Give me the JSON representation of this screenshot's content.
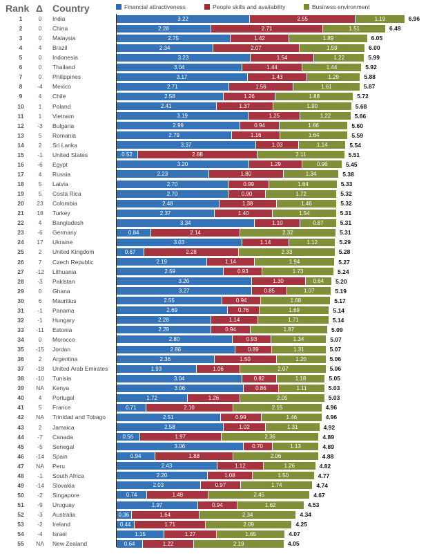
{
  "headers": {
    "rank": "Rank",
    "delta": "Δ",
    "country": "Country"
  },
  "chart_data": {
    "type": "bar",
    "orientation": "horizontal",
    "stacked": true,
    "series": [
      {
        "name": "Financial attractiveness",
        "color": "#2b6cb5"
      },
      {
        "name": "People skills and availability",
        "color": "#a12a36"
      },
      {
        "name": "Business environment",
        "color": "#7b8a2f"
      }
    ],
    "xlim": [
      0,
      7
    ],
    "rows": [
      {
        "rank": "1",
        "delta": "0",
        "country": "India",
        "values": [
          3.22,
          2.55,
          1.19
        ],
        "total": "6.96"
      },
      {
        "rank": "2",
        "delta": "0",
        "country": "China",
        "values": [
          2.28,
          2.71,
          1.51
        ],
        "total": "6.49"
      },
      {
        "rank": "3",
        "delta": "0",
        "country": "Malaysia",
        "values": [
          2.75,
          1.42,
          1.89
        ],
        "total": "6.05"
      },
      {
        "rank": "4",
        "delta": "4",
        "country": "Brazil",
        "values": [
          2.34,
          2.07,
          1.59
        ],
        "total": "6.00"
      },
      {
        "rank": "5",
        "delta": "0",
        "country": "Indonesia",
        "values": [
          3.23,
          1.54,
          1.22
        ],
        "total": "5.99"
      },
      {
        "rank": "6",
        "delta": "0",
        "country": "Thailand",
        "values": [
          3.04,
          1.44,
          1.44
        ],
        "total": "5.92"
      },
      {
        "rank": "7",
        "delta": "0",
        "country": "Philippines",
        "values": [
          3.17,
          1.43,
          1.29
        ],
        "total": "5.88"
      },
      {
        "rank": "8",
        "delta": "-4",
        "country": "Mexico",
        "values": [
          2.71,
          1.56,
          1.61
        ],
        "total": "5.87"
      },
      {
        "rank": "9",
        "delta": "4",
        "country": "Chile",
        "values": [
          2.58,
          1.26,
          1.88
        ],
        "total": "5.72"
      },
      {
        "rank": "10",
        "delta": "1",
        "country": "Poland",
        "values": [
          2.41,
          1.37,
          1.9
        ],
        "total": "5.68"
      },
      {
        "rank": "11",
        "delta": "1",
        "country": "Vietnam",
        "values": [
          3.19,
          1.25,
          1.22
        ],
        "total": "5.66"
      },
      {
        "rank": "12",
        "delta": "-3",
        "country": "Bulgaria",
        "values": [
          2.99,
          0.94,
          1.66
        ],
        "total": "5.60"
      },
      {
        "rank": "13",
        "delta": "5",
        "country": "Romania",
        "values": [
          2.79,
          1.16,
          1.64
        ],
        "total": "5.59"
      },
      {
        "rank": "14",
        "delta": "2",
        "country": "Sri Lanka",
        "values": [
          3.37,
          1.03,
          1.14
        ],
        "total": "5.54"
      },
      {
        "rank": "15",
        "delta": "-1",
        "country": "United States",
        "values": [
          0.52,
          2.88,
          2.11
        ],
        "total": "5.51"
      },
      {
        "rank": "16",
        "delta": "-6",
        "country": "Egypt",
        "values": [
          3.2,
          1.29,
          0.96
        ],
        "total": "5.45"
      },
      {
        "rank": "17",
        "delta": "4",
        "country": "Russia",
        "values": [
          2.23,
          1.8,
          1.34
        ],
        "total": "5.38"
      },
      {
        "rank": "18",
        "delta": "5",
        "country": "Latvia",
        "values": [
          2.7,
          0.99,
          1.64
        ],
        "total": "5.33"
      },
      {
        "rank": "19",
        "delta": "5",
        "country": "Costa Rica",
        "values": [
          2.7,
          0.9,
          1.72
        ],
        "total": "5.32"
      },
      {
        "rank": "20",
        "delta": "23",
        "country": "Colombia",
        "values": [
          2.48,
          1.38,
          1.46
        ],
        "total": "5.32"
      },
      {
        "rank": "21",
        "delta": "18",
        "country": "Turkey",
        "values": [
          2.37,
          1.4,
          1.54
        ],
        "total": "5.31"
      },
      {
        "rank": "22",
        "delta": "4",
        "country": "Bangladesh",
        "values": [
          3.34,
          1.1,
          0.87
        ],
        "total": "5.31"
      },
      {
        "rank": "23",
        "delta": "-6",
        "country": "Germany",
        "values": [
          0.84,
          2.14,
          2.32
        ],
        "total": "5.31"
      },
      {
        "rank": "24",
        "delta": "17",
        "country": "Ukraine",
        "values": [
          3.03,
          1.14,
          1.12
        ],
        "total": "5.29"
      },
      {
        "rank": "25",
        "delta": "2",
        "country": "United Kingdom",
        "values": [
          0.67,
          2.28,
          2.33
        ],
        "total": "5.28"
      },
      {
        "rank": "26",
        "delta": "7",
        "country": "Czech Republic",
        "values": [
          2.19,
          1.14,
          1.94
        ],
        "total": "5.27"
      },
      {
        "rank": "27",
        "delta": "-12",
        "country": "Lithuania",
        "values": [
          2.59,
          0.93,
          1.73
        ],
        "total": "5.24"
      },
      {
        "rank": "28",
        "delta": "-3",
        "country": "Pakistan",
        "values": [
          3.26,
          1.3,
          0.64
        ],
        "total": "5.20"
      },
      {
        "rank": "29",
        "delta": "0",
        "country": "Ghana",
        "values": [
          3.27,
          0.85,
          1.07
        ],
        "total": "5.19"
      },
      {
        "rank": "30",
        "delta": "6",
        "country": "Mauritius",
        "values": [
          2.55,
          0.94,
          1.68
        ],
        "total": "5.17"
      },
      {
        "rank": "31",
        "delta": "-1",
        "country": "Panama",
        "values": [
          2.69,
          0.76,
          1.69
        ],
        "total": "5.14"
      },
      {
        "rank": "32",
        "delta": "-1",
        "country": "Hungary",
        "values": [
          2.28,
          1.14,
          1.71
        ],
        "total": "5.14"
      },
      {
        "rank": "33",
        "delta": "-11",
        "country": "Estonia",
        "values": [
          2.29,
          0.94,
          1.87
        ],
        "total": "5.09"
      },
      {
        "rank": "34",
        "delta": "0",
        "country": "Morocco",
        "values": [
          2.8,
          0.93,
          1.34
        ],
        "total": "5.07"
      },
      {
        "rank": "35",
        "delta": "-15",
        "country": "Jordan",
        "values": [
          2.86,
          0.89,
          1.31
        ],
        "total": "5.07"
      },
      {
        "rank": "36",
        "delta": "2",
        "country": "Argentina",
        "values": [
          2.36,
          1.5,
          1.2
        ],
        "total": "5.06"
      },
      {
        "rank": "37",
        "delta": "-18",
        "country": "United Arab Emirates",
        "values": [
          1.93,
          1.06,
          2.07
        ],
        "total": "5.06"
      },
      {
        "rank": "38",
        "delta": "-10",
        "country": "Tunisia",
        "values": [
          3.04,
          0.82,
          1.18
        ],
        "total": "5.05"
      },
      {
        "rank": "39",
        "delta": "NA",
        "country": "Kenya",
        "values": [
          3.06,
          0.86,
          1.11
        ],
        "total": "5.03"
      },
      {
        "rank": "40",
        "delta": "4",
        "country": "Portugal",
        "values": [
          1.72,
          1.26,
          2.05
        ],
        "total": "5.03"
      },
      {
        "rank": "41",
        "delta": "5",
        "country": "France",
        "values": [
          0.71,
          2.1,
          2.15
        ],
        "total": "4.96"
      },
      {
        "rank": "42",
        "delta": "NA",
        "country": "Trinidad and Tobago",
        "values": [
          2.51,
          0.99,
          1.46
        ],
        "total": "4.96"
      },
      {
        "rank": "43",
        "delta": "2",
        "country": "Jamaica",
        "values": [
          2.58,
          1.02,
          1.31
        ],
        "total": "4.92"
      },
      {
        "rank": "44",
        "delta": "-7",
        "country": "Canada",
        "values": [
          0.56,
          1.97,
          2.36
        ],
        "total": "4.89"
      },
      {
        "rank": "45",
        "delta": "-5",
        "country": "Senegal",
        "values": [
          3.06,
          0.7,
          1.13
        ],
        "total": "4.89"
      },
      {
        "rank": "46",
        "delta": "-14",
        "country": "Spain",
        "values": [
          0.94,
          1.88,
          2.06
        ],
        "total": "4.88"
      },
      {
        "rank": "47",
        "delta": "NA",
        "country": "Peru",
        "values": [
          2.43,
          1.12,
          1.26
        ],
        "total": "4.82"
      },
      {
        "rank": "48",
        "delta": "-1",
        "country": "South Africa",
        "values": [
          2.2,
          1.08,
          1.5
        ],
        "total": "4.77"
      },
      {
        "rank": "49",
        "delta": "-14",
        "country": "Slovakia",
        "values": [
          2.03,
          0.97,
          1.74
        ],
        "total": "4.74"
      },
      {
        "rank": "50",
        "delta": "-2",
        "country": "Singapore",
        "values": [
          0.74,
          1.48,
          2.45
        ],
        "total": "4.67"
      },
      {
        "rank": "51",
        "delta": "-9",
        "country": "Uruguay",
        "values": [
          1.97,
          0.94,
          1.62
        ],
        "total": "4.53"
      },
      {
        "rank": "52",
        "delta": "-3",
        "country": "Australia",
        "values": [
          0.36,
          1.64,
          2.34
        ],
        "total": "4.34"
      },
      {
        "rank": "53",
        "delta": "-2",
        "country": "Ireland",
        "values": [
          0.44,
          1.71,
          2.09
        ],
        "total": "4.25"
      },
      {
        "rank": "54",
        "delta": "-4",
        "country": "Israel",
        "values": [
          1.15,
          1.27,
          1.65
        ],
        "total": "4.07"
      },
      {
        "rank": "55",
        "delta": "NA",
        "country": "New Zealand",
        "values": [
          0.64,
          1.22,
          2.19
        ],
        "total": "4.05"
      }
    ]
  }
}
